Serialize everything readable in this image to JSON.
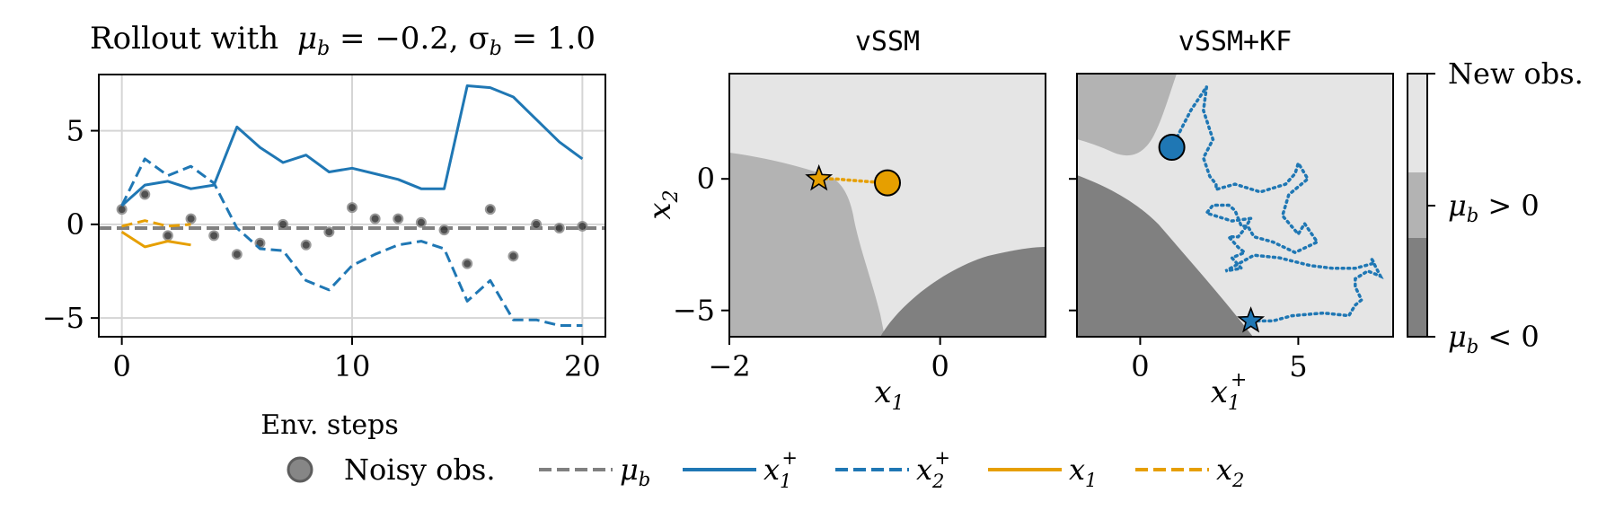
{
  "chart_data": [
    {
      "type": "line",
      "title": "Rollout with  μ_b = −0.2, σ_b = 1.0",
      "title_text": "Rollout with",
      "title_math": "μ",
      "title_math_sub": "b",
      "title_math_rest": " = −0.2, σ",
      "title_math_sub2": "b",
      "title_math_rest2": " = 1.0",
      "xlabel": "Env. steps",
      "ylabel": "",
      "xlim": [
        -1,
        21
      ],
      "ylim": [
        -6,
        8
      ],
      "xticks": [
        0,
        10,
        20
      ],
      "xtick_labels": [
        "0",
        "10",
        "20"
      ],
      "yticks": [
        -5,
        0,
        5
      ],
      "ytick_labels": [
        "−5",
        "0",
        "5"
      ],
      "grid": true,
      "mu_b": -0.2,
      "series": [
        {
          "name": "x1+",
          "style": "solid",
          "color": "#1f77b4",
          "x": [
            0,
            1,
            2,
            3,
            4,
            5,
            6,
            7,
            8,
            9,
            10,
            11,
            12,
            13,
            14,
            15,
            16,
            17,
            18,
            19,
            20
          ],
          "y": [
            1.0,
            2.1,
            2.3,
            1.9,
            2.1,
            5.2,
            4.1,
            3.3,
            3.7,
            2.8,
            3.0,
            2.7,
            2.4,
            1.9,
            1.9,
            7.4,
            7.3,
            6.8,
            5.6,
            4.4,
            3.5
          ]
        },
        {
          "name": "x2+",
          "style": "dashed",
          "color": "#1f77b4",
          "x": [
            0,
            1,
            2,
            3,
            4,
            5,
            6,
            7,
            8,
            9,
            10,
            11,
            12,
            13,
            14,
            15,
            16,
            17,
            18,
            19,
            20
          ],
          "y": [
            1.0,
            3.5,
            2.6,
            3.1,
            2.2,
            -0.2,
            -1.3,
            -1.4,
            -3.0,
            -3.5,
            -2.2,
            -1.6,
            -1.1,
            -0.9,
            -1.3,
            -4.1,
            -3.0,
            -5.1,
            -5.1,
            -5.4,
            -5.4
          ]
        },
        {
          "name": "x1",
          "style": "solid",
          "color": "#e69f00",
          "x": [
            0,
            1,
            2,
            3
          ],
          "y": [
            -0.4,
            -1.2,
            -0.9,
            -1.1
          ]
        },
        {
          "name": "x2",
          "style": "dashed",
          "color": "#e69f00",
          "x": [
            0,
            1,
            2,
            3
          ],
          "y": [
            -0.1,
            0.2,
            -0.1,
            0.0
          ]
        }
      ],
      "noisy_obs": {
        "x": [
          0,
          1,
          2,
          3,
          4,
          5,
          6,
          7,
          8,
          9,
          10,
          11,
          12,
          13,
          14,
          15,
          16,
          17,
          18,
          19,
          20
        ],
        "y": [
          0.8,
          1.6,
          -0.6,
          0.3,
          -0.6,
          -1.6,
          -1.0,
          0.0,
          -1.1,
          -0.4,
          0.9,
          0.3,
          0.3,
          0.1,
          -0.3,
          -2.1,
          0.8,
          -1.7,
          0.0,
          -0.2,
          -0.1
        ]
      }
    },
    {
      "type": "heatmap",
      "title": "vSSM",
      "xlabel": "x1",
      "ylabel": "x2",
      "xlim": [
        -2.0,
        1.0
      ],
      "ylim": [
        -6.0,
        4.0
      ],
      "xticks": [
        -2,
        0
      ],
      "xtick_labels": [
        "−2",
        "0"
      ],
      "yticks": [
        -5,
        0
      ],
      "ytick_labels": [
        "−5",
        "0"
      ],
      "trajectory": {
        "color": "#e69f00",
        "x": [
          -1.15,
          -1.0,
          -0.85,
          -0.7,
          -0.5
        ],
        "y": [
          0.0,
          0.0,
          -0.05,
          -0.1,
          -0.15
        ]
      },
      "start": {
        "x": -1.15,
        "y": 0.0
      },
      "end": {
        "x": -0.5,
        "y": -0.15
      }
    },
    {
      "type": "heatmap",
      "title": "vSSM+KF",
      "xlabel": "x1+",
      "ylabel": "",
      "xlim": [
        -2.0,
        8.0
      ],
      "ylim": [
        -6.0,
        4.0
      ],
      "xticks": [
        0,
        5
      ],
      "xtick_labels": [
        "0",
        "5"
      ],
      "yticks": [
        -5,
        0
      ],
      "ytick_labels": [
        "",
        ""
      ],
      "trajectory": {
        "color": "#1f77b4",
        "x": [
          1.0,
          1.6,
          2.1,
          2.0,
          2.3,
          2.0,
          2.2,
          2.4,
          2.4,
          3.0,
          3.8,
          4.6,
          4.9,
          5.0,
          5.3,
          4.7,
          4.5,
          5.0,
          5.2,
          5.6,
          4.9,
          4.2,
          3.6,
          3.4,
          3.2,
          3.0,
          2.8,
          2.3,
          2.1,
          2.9,
          3.5,
          3.3,
          3.1,
          2.8,
          3.1,
          3.3,
          2.9,
          3.2,
          2.7,
          3.6,
          4.4,
          5.4,
          6.1,
          6.8,
          7.4,
          7.3,
          7.6,
          7.2,
          6.8,
          6.8,
          7.0,
          6.8,
          6.7,
          6.6,
          5.8,
          4.8,
          4.2,
          3.7,
          3.5
        ],
        "y": [
          1.2,
          2.6,
          3.5,
          2.6,
          1.5,
          0.8,
          0.1,
          -0.2,
          -0.4,
          -0.2,
          -0.5,
          -0.2,
          0.2,
          0.6,
          0.0,
          -0.6,
          -1.4,
          -2.1,
          -1.7,
          -2.4,
          -2.8,
          -2.4,
          -2.2,
          -1.8,
          -1.8,
          -1.2,
          -1.0,
          -1.0,
          -1.3,
          -1.6,
          -1.5,
          -1.9,
          -2.2,
          -2.2,
          -2.6,
          -2.8,
          -3.0,
          -3.4,
          -3.5,
          -2.9,
          -3.0,
          -3.3,
          -3.4,
          -3.4,
          -3.2,
          -3.0,
          -3.7,
          -3.5,
          -3.8,
          -4.1,
          -4.6,
          -4.8,
          -5.0,
          -5.2,
          -5.1,
          -5.2,
          -5.4,
          -5.4,
          -5.4
        ]
      },
      "start": {
        "x": 3.5,
        "y": -5.4
      },
      "end": {
        "x": 1.0,
        "y": 1.2
      }
    }
  ],
  "colorbar": {
    "labels": [
      {
        "text": "New obs.",
        "mu": false
      },
      {
        "text": " > 0",
        "mu": true
      },
      {
        "text": " < 0",
        "mu": true
      }
    ],
    "colors": [
      "#e5e5e5",
      "#b3b3b3",
      "#808080"
    ]
  },
  "legend": {
    "placement": "bottom",
    "items": [
      {
        "key": "noisy_obs",
        "label": "Noisy obs."
      },
      {
        "key": "mu_b",
        "label": "μ",
        "sub": "b"
      },
      {
        "key": "x1plus",
        "label": "x",
        "sub": "1",
        "sup": "+"
      },
      {
        "key": "x2plus",
        "label": "x",
        "sub": "2",
        "sup": "+"
      },
      {
        "key": "x1",
        "label": "x",
        "sub": "1"
      },
      {
        "key": "x2",
        "label": "x",
        "sub": "2"
      }
    ]
  },
  "colors": {
    "blue": "#1f77b4",
    "orange": "#e69f00",
    "gray_dashed": "#808080",
    "region_light": "#e5e5e5",
    "region_mid": "#b3b3b3",
    "region_dark": "#808080"
  }
}
